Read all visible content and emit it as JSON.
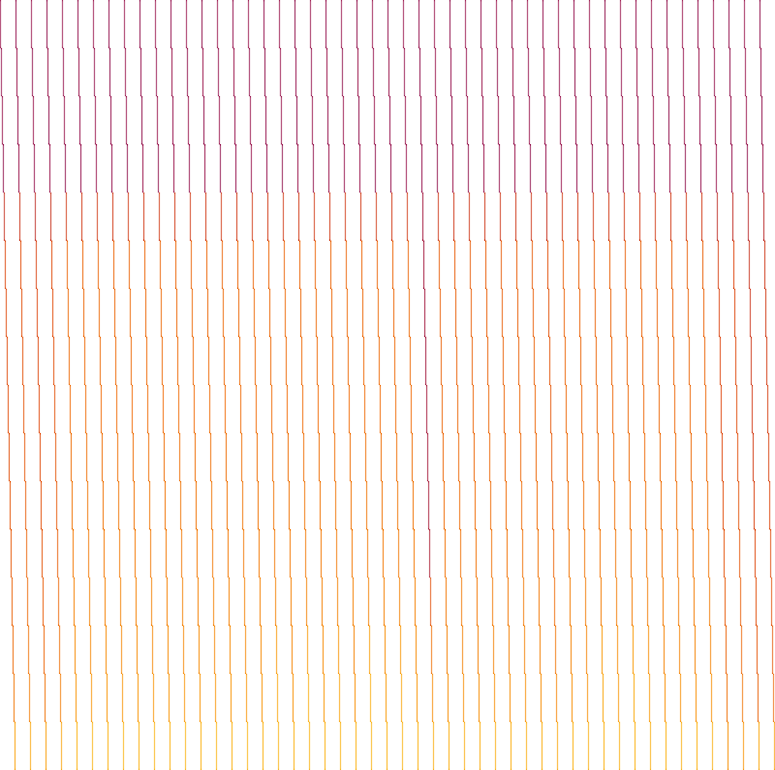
{
  "chart_data": {
    "type": "heatmap",
    "grid": false,
    "tick_labels": false,
    "zlim": [
      0,
      100
    ],
    "cells": [
      [
        26,
        25,
        26,
        24,
        26,
        25,
        26,
        25,
        26,
        24,
        26,
        25,
        26,
        24,
        26,
        25,
        26,
        25,
        26,
        24,
        26,
        25,
        26,
        24,
        26,
        25,
        26,
        25,
        26,
        24,
        26,
        25,
        26,
        24,
        26,
        25,
        26,
        25,
        26,
        24,
        26,
        25,
        26,
        24,
        26,
        25,
        26,
        25,
        26,
        24
      ],
      [
        25,
        26,
        24,
        26,
        25,
        26,
        25,
        24,
        26,
        25,
        25,
        26,
        24,
        26,
        25,
        26,
        25,
        24,
        26,
        25,
        25,
        26,
        24,
        26,
        25,
        26,
        25,
        24,
        26,
        25,
        25,
        26,
        24,
        26,
        25,
        26,
        25,
        24,
        26,
        25,
        25,
        26,
        24,
        26,
        25,
        26,
        25,
        24,
        26,
        25
      ],
      [
        26,
        25,
        26,
        24,
        26,
        25,
        26,
        25,
        26,
        24,
        26,
        25,
        26,
        24,
        26,
        25,
        26,
        25,
        26,
        24,
        26,
        25,
        26,
        24,
        26,
        25,
        26,
        25,
        26,
        24,
        26,
        25,
        26,
        24,
        26,
        25,
        26,
        25,
        26,
        24,
        26,
        25,
        26,
        24,
        26,
        25,
        26,
        25,
        26,
        24
      ],
      [
        24,
        26,
        25,
        26,
        24,
        25,
        26,
        25,
        24,
        26,
        24,
        26,
        25,
        26,
        24,
        25,
        26,
        25,
        24,
        26,
        24,
        26,
        25,
        26,
        24,
        25,
        26,
        25,
        24,
        26,
        24,
        26,
        25,
        26,
        24,
        25,
        26,
        25,
        24,
        26,
        24,
        26,
        25,
        26,
        24,
        25,
        26,
        25,
        24,
        26
      ],
      [
        42,
        44,
        40,
        43,
        46,
        46,
        46,
        46,
        46,
        46,
        46,
        46,
        46,
        46,
        46,
        46,
        46,
        46,
        46,
        46,
        46,
        46,
        46,
        46,
        46,
        46,
        46,
        30,
        45,
        45,
        45,
        45,
        45,
        45,
        45,
        42,
        46,
        46,
        46,
        46,
        46,
        46,
        46,
        46,
        46,
        46,
        40,
        40,
        38,
        38
      ],
      [
        51,
        54,
        49,
        53,
        63,
        63,
        63,
        63,
        63,
        63,
        63,
        63,
        63,
        63,
        63,
        63,
        63,
        63,
        63,
        63,
        63,
        63,
        63,
        63,
        63,
        63,
        63,
        30,
        60,
        60,
        60,
        60,
        60,
        60,
        60,
        55,
        61,
        61,
        61,
        61,
        61,
        61,
        61,
        61,
        61,
        61,
        48,
        50,
        43,
        45
      ],
      [
        52,
        55,
        50,
        54,
        64,
        64,
        64,
        64,
        64,
        64,
        64,
        64,
        64,
        64,
        64,
        64,
        64,
        64,
        64,
        64,
        64,
        64,
        64,
        64,
        64,
        64,
        64,
        30,
        61,
        61,
        61,
        61,
        61,
        61,
        61,
        56,
        62,
        62,
        62,
        62,
        62,
        62,
        62,
        62,
        62,
        62,
        49,
        51,
        44,
        46
      ],
      [
        53,
        56,
        51,
        55,
        65,
        65,
        65,
        65,
        65,
        65,
        65,
        65,
        65,
        65,
        65,
        65,
        65,
        65,
        65,
        65,
        65,
        65,
        65,
        65,
        65,
        65,
        65,
        30,
        62,
        62,
        62,
        62,
        62,
        62,
        62,
        57,
        63,
        63,
        63,
        63,
        63,
        63,
        63,
        63,
        63,
        63,
        50,
        52,
        45,
        47
      ],
      [
        54,
        57,
        52,
        56,
        66,
        66,
        66,
        66,
        66,
        66,
        66,
        66,
        66,
        66,
        66,
        66,
        66,
        66,
        66,
        66,
        66,
        66,
        66,
        66,
        66,
        66,
        66,
        31,
        63,
        63,
        63,
        63,
        63,
        63,
        63,
        58,
        64,
        64,
        64,
        64,
        64,
        64,
        64,
        64,
        64,
        64,
        51,
        53,
        46,
        48
      ],
      [
        55,
        58,
        53,
        57,
        67,
        67,
        67,
        67,
        67,
        67,
        67,
        67,
        67,
        67,
        67,
        67,
        67,
        67,
        67,
        67,
        67,
        67,
        67,
        67,
        67,
        67,
        67,
        31,
        64,
        64,
        64,
        64,
        64,
        64,
        64,
        59,
        65,
        65,
        65,
        65,
        65,
        65,
        65,
        65,
        65,
        65,
        52,
        54,
        47,
        49
      ],
      [
        57,
        60,
        55,
        59,
        69,
        69,
        69,
        69,
        69,
        69,
        69,
        69,
        69,
        69,
        69,
        69,
        69,
        69,
        69,
        69,
        69,
        69,
        69,
        69,
        69,
        69,
        69,
        32,
        66,
        66,
        66,
        66,
        66,
        66,
        66,
        61,
        67,
        67,
        67,
        67,
        67,
        67,
        67,
        67,
        67,
        67,
        54,
        56,
        49,
        51
      ],
      [
        59,
        62,
        57,
        61,
        71,
        71,
        71,
        71,
        71,
        71,
        71,
        71,
        71,
        71,
        71,
        71,
        71,
        71,
        71,
        71,
        71,
        71,
        71,
        71,
        71,
        71,
        71,
        34,
        68,
        68,
        68,
        68,
        68,
        68,
        68,
        63,
        69,
        69,
        69,
        69,
        69,
        69,
        69,
        69,
        69,
        69,
        56,
        58,
        51,
        53
      ],
      [
        62,
        65,
        60,
        64,
        74,
        74,
        74,
        74,
        74,
        74,
        74,
        74,
        74,
        74,
        74,
        74,
        74,
        74,
        74,
        74,
        74,
        74,
        74,
        74,
        74,
        74,
        74,
        55,
        71,
        71,
        71,
        71,
        71,
        71,
        71,
        66,
        72,
        72,
        72,
        72,
        72,
        72,
        72,
        72,
        72,
        72,
        59,
        61,
        54,
        56
      ],
      [
        65,
        68,
        63,
        67,
        77,
        77,
        77,
        77,
        77,
        77,
        77,
        77,
        77,
        77,
        77,
        77,
        77,
        83,
        76,
        84,
        78,
        82,
        75,
        85,
        79,
        83,
        77,
        68,
        74,
        74,
        74,
        74,
        74,
        74,
        74,
        69,
        75,
        75,
        83,
        78,
        84,
        79,
        75,
        75,
        75,
        75,
        62,
        64,
        57,
        59
      ],
      [
        70,
        73,
        68,
        72,
        82,
        82,
        82,
        82,
        82,
        82,
        82,
        82,
        82,
        82,
        82,
        82,
        82,
        88,
        81,
        90,
        83,
        87,
        80,
        91,
        84,
        88,
        82,
        78,
        79,
        79,
        79,
        79,
        79,
        79,
        79,
        76,
        80,
        80,
        88,
        83,
        89,
        84,
        80,
        80,
        80,
        80,
        67,
        69,
        62,
        64
      ],
      [
        86,
        88,
        85,
        87,
        92,
        92,
        92,
        92,
        92,
        92,
        92,
        92,
        92,
        92,
        92,
        92,
        92,
        92,
        92,
        92,
        92,
        92,
        92,
        92,
        92,
        92,
        92,
        90,
        90,
        90,
        90,
        90,
        90,
        90,
        90,
        88,
        91,
        91,
        91,
        91,
        91,
        91,
        91,
        91,
        91,
        91,
        80,
        82,
        88,
        86
      ]
    ]
  }
}
